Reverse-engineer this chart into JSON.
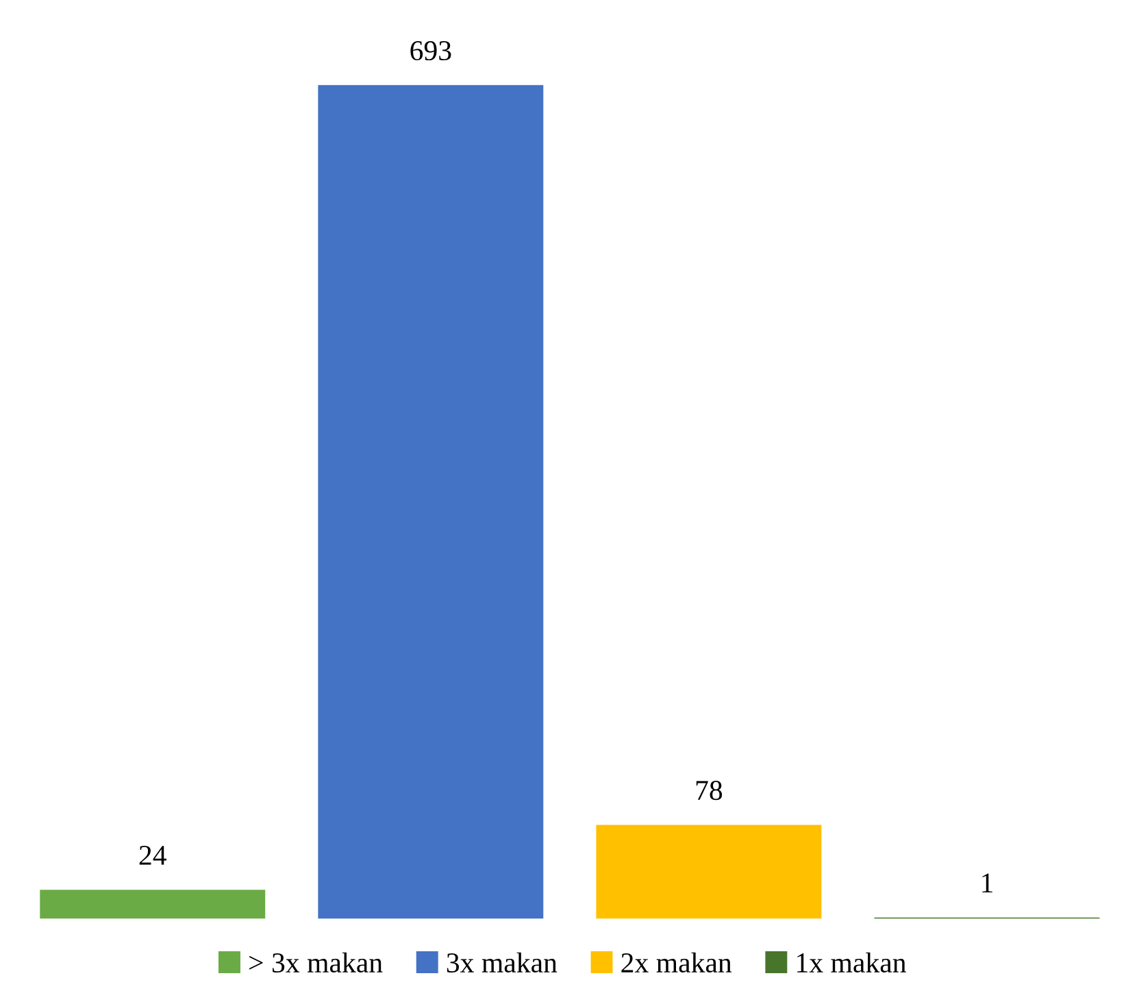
{
  "chart_data": {
    "type": "bar",
    "categories": [
      null
    ],
    "series": [
      {
        "name": "> 3x makan",
        "color": "#6aab45",
        "values": [
          24
        ]
      },
      {
        "name": "3x makan",
        "color": "#4472c4",
        "values": [
          693
        ]
      },
      {
        "name": "2x makan",
        "color": "#ffc000",
        "values": [
          78
        ]
      },
      {
        "name": "1x makan",
        "color": "#48752c",
        "values": [
          1
        ]
      }
    ],
    "data_labels": true,
    "legend": "bottom"
  }
}
